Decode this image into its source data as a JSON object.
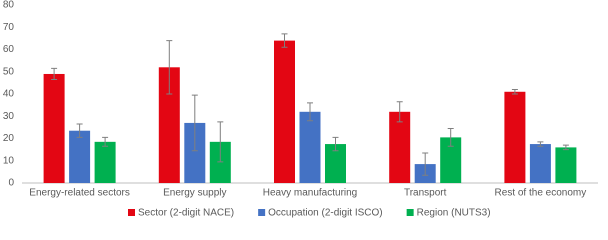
{
  "chart_data": {
    "type": "bar",
    "categories": [
      "Energy-related sectors",
      "Energy supply",
      "Heavy manufacturing",
      "Transport",
      "Rest of the economy"
    ],
    "series": [
      {
        "name": "Sector (2-digit NACE)",
        "color": "#e30613",
        "values": [
          49,
          52,
          64,
          32,
          41
        ],
        "errors": [
          2.5,
          12,
          3,
          4.5,
          1
        ]
      },
      {
        "name": "Occupation (2-digit ISCO)",
        "color": "#4472c4",
        "values": [
          23.5,
          27,
          32,
          8.5,
          17.5
        ],
        "errors": [
          3,
          12.5,
          4,
          5,
          1
        ]
      },
      {
        "name": "Region (NUTS3)",
        "color": "#00b050",
        "values": [
          18.5,
          18.5,
          17.5,
          20.5,
          16
        ],
        "errors": [
          2,
          9,
          3,
          4,
          1
        ]
      }
    ],
    "ylim": [
      0,
      80
    ],
    "yticks": [
      0,
      10,
      20,
      30,
      40,
      50,
      60,
      70,
      80
    ],
    "grid": false,
    "legend": "bottom"
  }
}
